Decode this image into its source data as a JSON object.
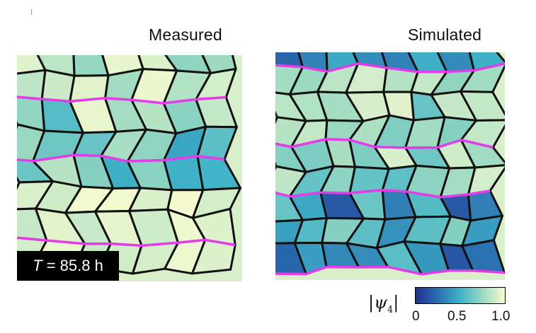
{
  "panels": {
    "measured_title": "Measured",
    "simulated_title": "Simulated"
  },
  "time_label": {
    "var": "T",
    "rest": " = 85.8 h"
  },
  "colorbar": {
    "label_main": "|ψ",
    "label_sub": "4",
    "label_end": "|",
    "ticks": [
      "0",
      "0.5",
      "1.0"
    ],
    "colors": [
      "#1f2f8f",
      "#2b6fb0",
      "#3fb3c8",
      "#9bd9c0",
      "#f6fbcf"
    ],
    "min": 0,
    "max": 1
  },
  "style": {
    "boundary_color": "#e53bea",
    "edge_color": "#111111"
  }
}
